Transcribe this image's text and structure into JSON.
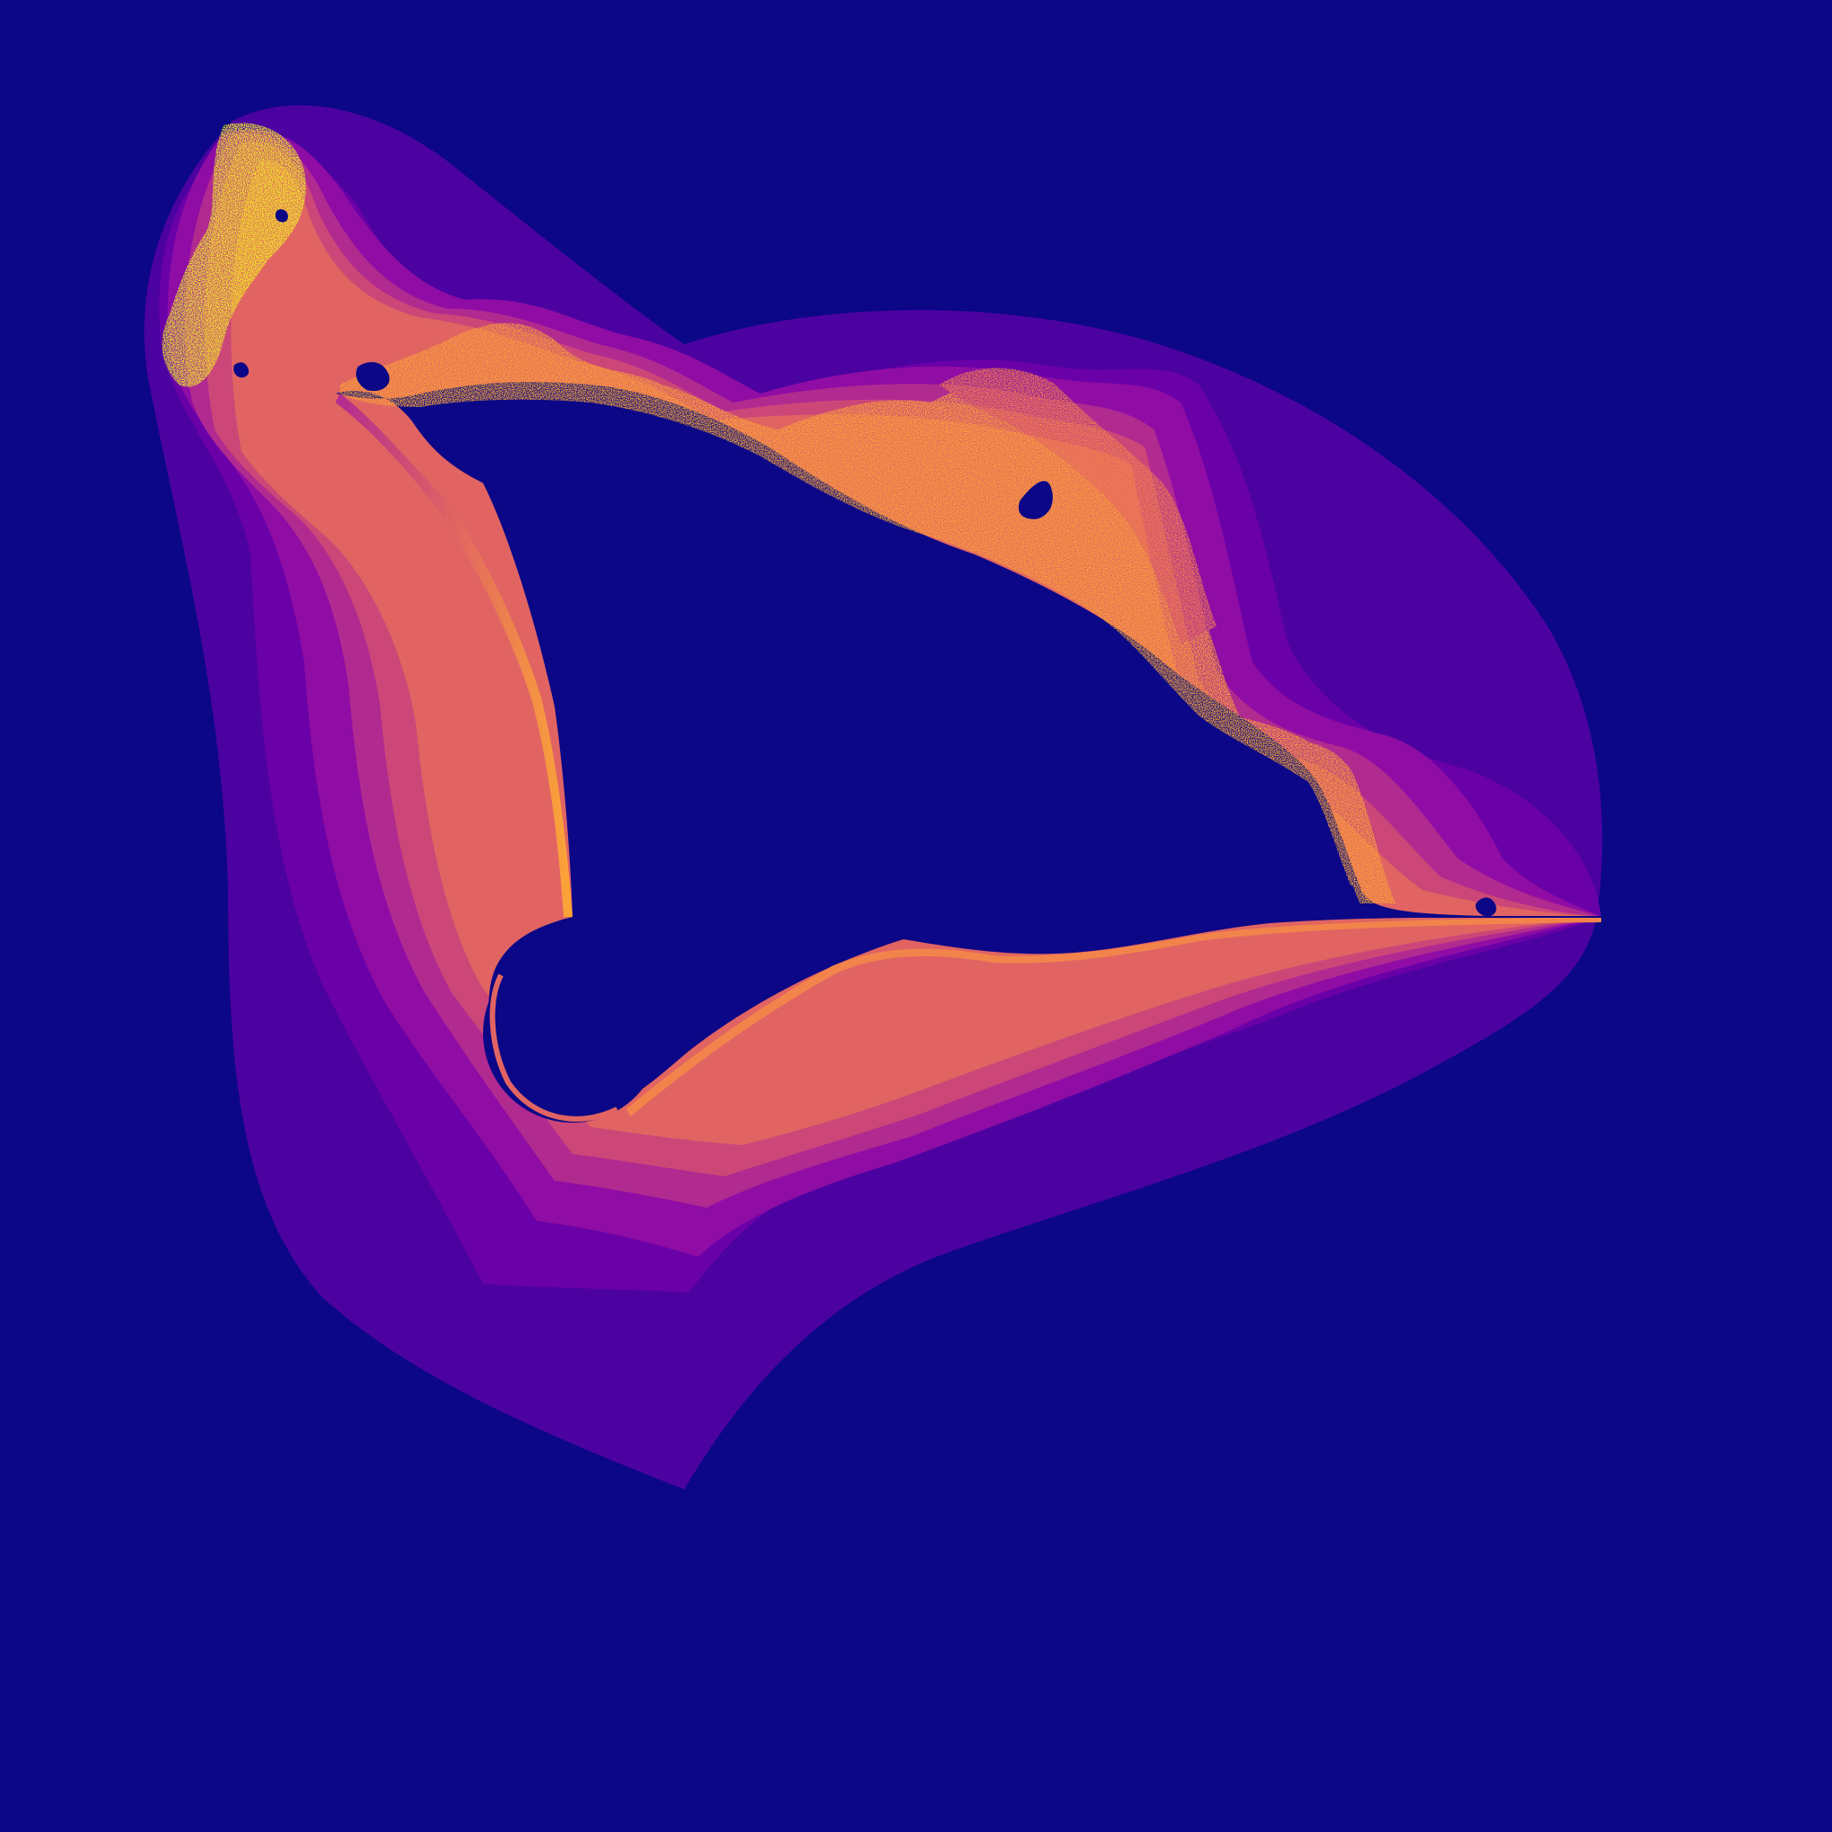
{
  "image": {
    "description_tag": "escape-time-fractal-plasma",
    "colors": {
      "background": "#0b0787",
      "interior": "#0b0787",
      "band_1": "#4c02a1",
      "band_2": "#6a00a8",
      "band_3": "#8f0da4",
      "band_4": "#b12a90",
      "band_5": "#cc4778",
      "band_6": "#e16462",
      "band_7": "#f2844b",
      "band_8": "#fca636",
      "band_9": "#fcce25",
      "boundary": "#f0f921"
    }
  }
}
